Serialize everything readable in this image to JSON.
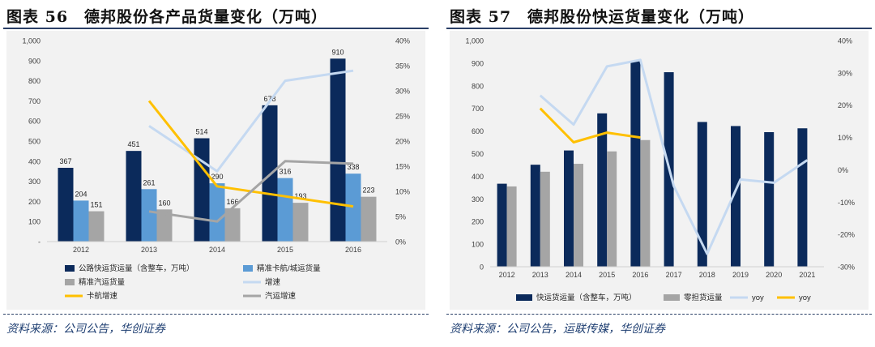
{
  "figures": [
    {
      "id": "fig56",
      "title": "图表 56　德邦股份各产品货量变化（万吨）",
      "source": "资料来源：公司公告，华创证券",
      "left_axis_ticks": [
        "1,000",
        "900",
        "800",
        "700",
        "600",
        "500",
        "400",
        "300",
        "200",
        "100",
        "-"
      ],
      "right_axis_ticks": [
        "40%",
        "35%",
        "30%",
        "25%",
        "20%",
        "15%",
        "10%",
        "5%",
        "0%"
      ]
    },
    {
      "id": "fig57",
      "title": "图表 57　德邦股份快运货量变化（万吨）",
      "source": "资料来源：公司公告，运联传媒，华创证券",
      "left_axis_ticks": [
        "1,000",
        "900",
        "800",
        "700",
        "600",
        "500",
        "400",
        "300",
        "200",
        "100",
        "0"
      ],
      "right_axis_ticks": [
        "40%",
        "30%",
        "20%",
        "10%",
        "0%",
        "-10%",
        "-20%",
        "-30%"
      ]
    }
  ],
  "chart_data": [
    {
      "type": "bar",
      "title": "德邦股份各产品货量变化（万吨）",
      "categories": [
        "2012",
        "2013",
        "2014",
        "2015",
        "2016"
      ],
      "ylim": [
        0,
        1000
      ],
      "y2lim": [
        0,
        40
      ],
      "series": [
        {
          "name": "公路快运货运量（含整车，万吨）",
          "kind": "bar",
          "axis": "left",
          "color": "#0b2a5b",
          "values": [
            367,
            451,
            514,
            678,
            910
          ],
          "labels": [
            "367",
            "451",
            "514",
            "678",
            "910"
          ]
        },
        {
          "name": "精准卡航/城运货量",
          "kind": "bar",
          "axis": "left",
          "color": "#5b9bd5",
          "values": [
            204,
            261,
            290,
            316,
            338
          ],
          "labels": [
            "204",
            "261",
            "290",
            "316",
            "338"
          ]
        },
        {
          "name": "精准汽运货量",
          "kind": "bar",
          "axis": "left",
          "color": "#a5a5a5",
          "values": [
            151,
            160,
            166,
            193,
            223
          ],
          "labels": [
            "151",
            "160",
            "166",
            "193",
            "223"
          ]
        },
        {
          "name": "增速",
          "kind": "line",
          "axis": "right",
          "color": "#c5d9f1",
          "values": [
            null,
            23,
            14,
            32,
            34
          ]
        },
        {
          "name": "卡航增速",
          "kind": "line",
          "axis": "right",
          "color": "#ffc000",
          "values": [
            null,
            28,
            11,
            9,
            7
          ]
        },
        {
          "name": "汽运增速",
          "kind": "line",
          "axis": "right",
          "color": "#a5a5a5",
          "values": [
            null,
            6,
            4,
            16,
            15.5
          ]
        }
      ],
      "legend": [
        "公路快运货运量（含整车，万吨）",
        "精准卡航/城运货量",
        "精准汽运货量",
        "增速",
        "卡航增速",
        "汽运增速"
      ]
    },
    {
      "type": "bar",
      "title": "德邦股份快运货量变化（万吨）",
      "categories": [
        "2012",
        "2013",
        "2014",
        "2015",
        "2016",
        "2017",
        "2018",
        "2019",
        "2020",
        "2021"
      ],
      "ylim": [
        0,
        1000
      ],
      "y2lim": [
        -30,
        40
      ],
      "series": [
        {
          "name": "快运货运量（含整车，万吨）",
          "kind": "bar",
          "axis": "left",
          "color": "#0b2a5b",
          "values": [
            367,
            451,
            514,
            678,
            910,
            860,
            640,
            622,
            595,
            612
          ]
        },
        {
          "name": "零担货运量",
          "kind": "bar",
          "axis": "left",
          "color": "#a5a5a5",
          "values": [
            355,
            420,
            455,
            510,
            560,
            null,
            null,
            null,
            null,
            null
          ]
        },
        {
          "name": "yoy",
          "kind": "line",
          "axis": "right",
          "color": "#c5d9f1",
          "values": [
            null,
            23,
            14,
            32,
            34,
            -5,
            -26,
            -3,
            -4,
            3
          ]
        },
        {
          "name": "yoy",
          "kind": "line",
          "axis": "right",
          "color": "#ffc000",
          "values": [
            null,
            19,
            8.5,
            11.5,
            10,
            null,
            null,
            null,
            null,
            null
          ]
        }
      ],
      "legend": [
        "快运货运量（含整车，万吨）",
        "零担货运量",
        "yoy",
        "yoy"
      ]
    }
  ]
}
